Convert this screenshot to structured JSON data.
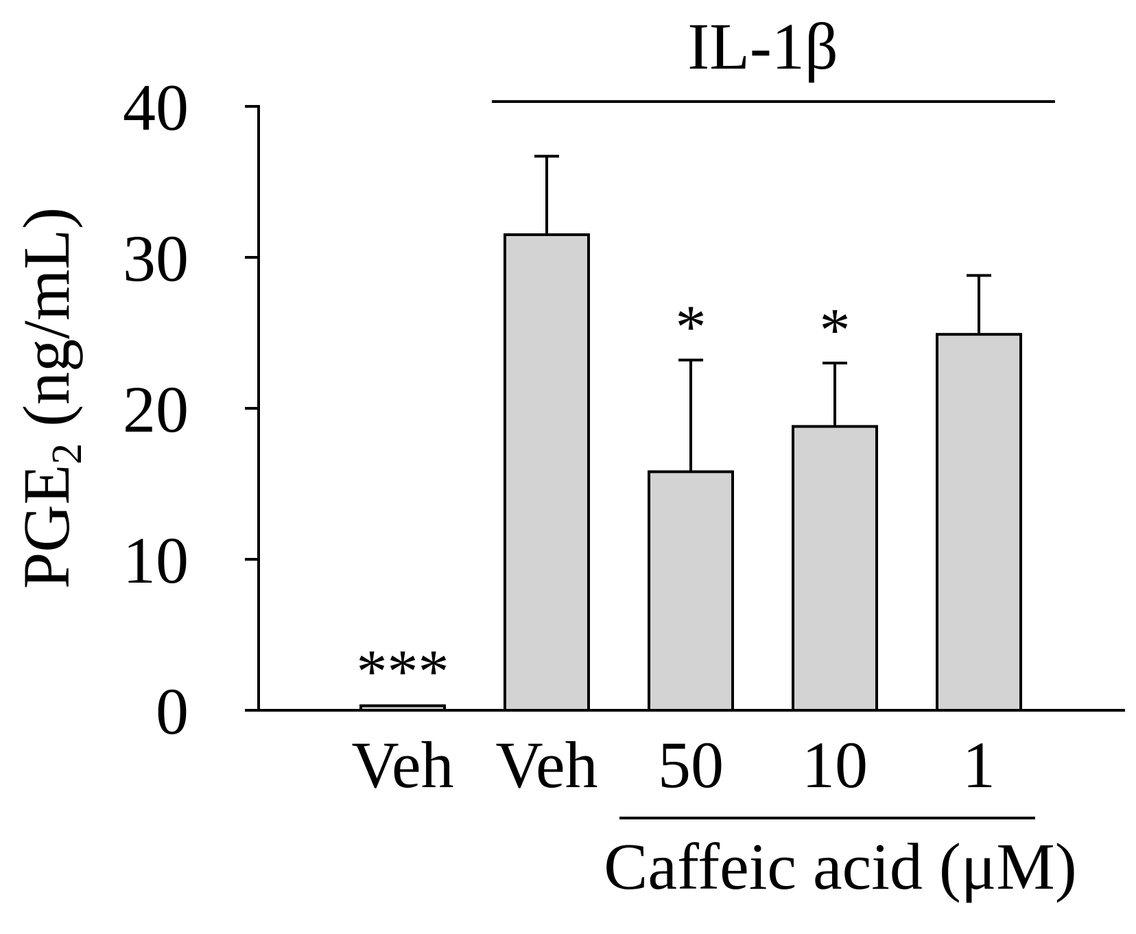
{
  "chart_data": {
    "type": "bar",
    "title": "",
    "ylabel_main": "PGE",
    "ylabel_sub": "2",
    "ylabel_unit": " (ng/mL)",
    "xlabel": "Caffeic acid (μM)",
    "group_label": "IL-1β",
    "ylim": [
      0,
      40
    ],
    "yticks": [
      0,
      10,
      20,
      30,
      40
    ],
    "categories": [
      "Veh",
      "Veh",
      "50",
      "10",
      "1"
    ],
    "values": [
      0.3,
      31.5,
      15.8,
      18.8,
      24.9
    ],
    "errors": [
      0,
      5.2,
      7.4,
      4.2,
      3.9
    ],
    "significance": [
      "***",
      "",
      "*",
      "*",
      ""
    ],
    "bar_color": "#d3d3d3",
    "grid": false,
    "legend": "none"
  }
}
